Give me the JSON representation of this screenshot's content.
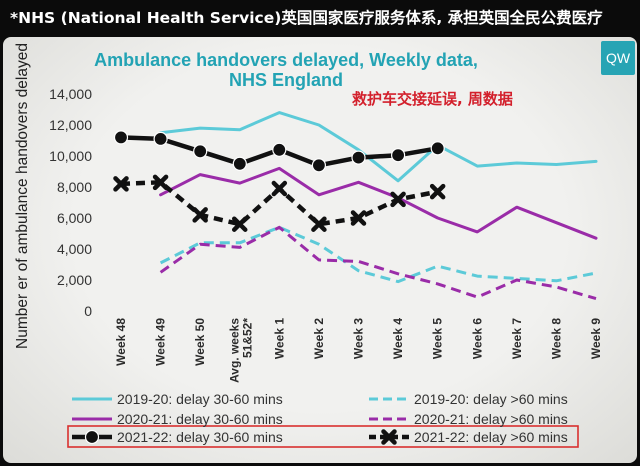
{
  "header": {
    "text": "*NHS (National Health Service)英国国家医疗服务体系, 承担英国全民公费医疗"
  },
  "logo": {
    "text": "QW"
  },
  "colors": {
    "header_bg": "#0b0b0b",
    "title": "#23a3b4",
    "subtitle": "#d3202c",
    "logo_bg": "#27a4b4",
    "highlight_box": "#d9302f"
  },
  "chart_data": {
    "type": "line",
    "title_lines": [
      "Ambulance handovers delayed, Weekly data,",
      "NHS England"
    ],
    "subtitle": "救护车交接延误, 周数据",
    "xlabel": "",
    "ylabel": "Number er of ambulance handovers delayed",
    "categories": [
      "Week 48",
      "Week 49",
      "Week 50",
      "Avg. weeks 51&52*",
      "Week 1",
      "Week 2",
      "Week 3",
      "Week 4",
      "Week 5",
      "Week 6",
      "Week 7",
      "Week 8",
      "Week 9"
    ],
    "y_ticks": [
      0,
      2000,
      4000,
      6000,
      8000,
      10000,
      12000,
      14000
    ],
    "y_tick_labels": [
      "0",
      "2,000",
      "4,000",
      "6,000",
      "8,000",
      "10,000",
      "12,000",
      "14,000"
    ],
    "ylim": [
      0,
      14000
    ],
    "grid": false,
    "legend_position": "bottom",
    "series": [
      {
        "name": "2019-20: delay 30-60 mins",
        "color": "#5ccad8",
        "line": "solid",
        "marker": "none",
        "highlighted": false,
        "values": [
          null,
          11500,
          11800,
          11700,
          12800,
          12000,
          10400,
          8400,
          10700,
          9350,
          9550,
          9450,
          9650
        ]
      },
      {
        "name": "2020-21: delay 30-60 mins",
        "color": "#9a2ca8",
        "line": "solid",
        "marker": "none",
        "highlighted": false,
        "values": [
          null,
          7500,
          8800,
          8250,
          9200,
          7500,
          8300,
          7300,
          6000,
          5100,
          6700,
          5700,
          4700
        ]
      },
      {
        "name": "2021-22: delay 30-60 mins",
        "color": "#111111",
        "line": "solid",
        "marker": "circle",
        "highlighted": true,
        "values": [
          11200,
          11100,
          10300,
          9500,
          10400,
          9400,
          9900,
          10050,
          10500,
          null,
          null,
          null,
          null
        ]
      },
      {
        "name": "2019-20: delay >60 mins",
        "color": "#5ccad8",
        "line": "dashed",
        "marker": "none",
        "highlighted": false,
        "values": [
          null,
          3100,
          4400,
          4400,
          5400,
          4300,
          2600,
          1900,
          2900,
          2250,
          2100,
          1950,
          2450
        ]
      },
      {
        "name": "2020-21: delay >60 mins",
        "color": "#9a2ca8",
        "line": "dashed",
        "marker": "none",
        "highlighted": false,
        "values": [
          null,
          2500,
          4300,
          4100,
          5400,
          3300,
          3200,
          2400,
          1750,
          900,
          2000,
          1550,
          800
        ]
      },
      {
        "name": "2021-22: delay >60 mins",
        "color": "#111111",
        "line": "dashed",
        "marker": "x",
        "highlighted": true,
        "values": [
          8200,
          8300,
          6200,
          5600,
          7900,
          5600,
          6000,
          7200,
          7700,
          null,
          null,
          null,
          null
        ]
      }
    ]
  }
}
